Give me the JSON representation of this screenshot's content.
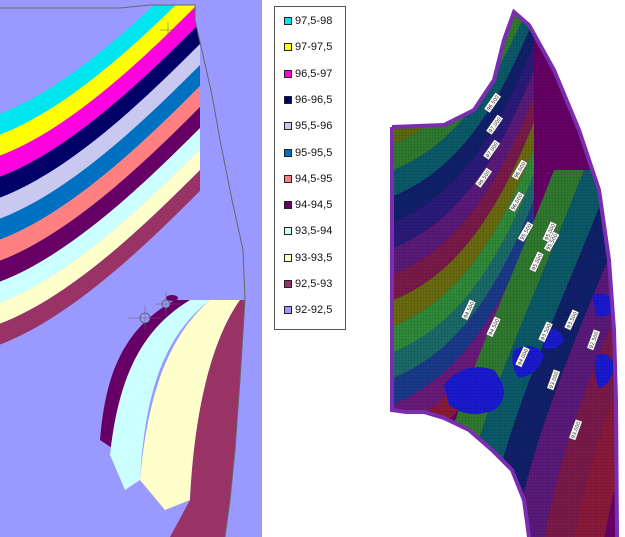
{
  "legend": {
    "items": [
      {
        "label": "97,5-98",
        "color": "#00e6f0"
      },
      {
        "label": "97-97,5",
        "color": "#ffff00"
      },
      {
        "label": "96,5-97",
        "color": "#ff00e0"
      },
      {
        "label": "96-96,5",
        "color": "#000066"
      },
      {
        "label": "95,5-96",
        "color": "#c8c8f0"
      },
      {
        "label": "95-95,5",
        "color": "#0070c0"
      },
      {
        "label": "94,5-95",
        "color": "#ff8080"
      },
      {
        "label": "94-94,5",
        "color": "#660066"
      },
      {
        "label": "93,5-94",
        "color": "#ccffff"
      },
      {
        "label": "93-93,5",
        "color": "#ffffcc"
      },
      {
        "label": "92,5-93",
        "color": "#993366"
      },
      {
        "label": "92-92,5",
        "color": "#9999ff"
      }
    ]
  },
  "right_map": {
    "contour_labels": [
      "96.500",
      "97.000",
      "97.000",
      "96.500",
      "96.000",
      "96.000",
      "95.500",
      "95.500",
      "95.000",
      "95.000",
      "94.500",
      "94.500",
      "94.000",
      "93.500",
      "93.500",
      "93.000",
      "93.000",
      "92.500"
    ]
  }
}
